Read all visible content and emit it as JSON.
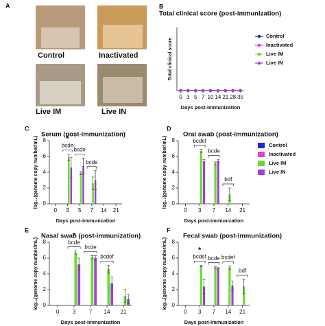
{
  "panel_a": {
    "letter": "A",
    "photos": [
      {
        "label": "Control"
      },
      {
        "label": "Inactivated"
      },
      {
        "label": "Live IM"
      },
      {
        "label": "Live IN"
      }
    ]
  },
  "chart_data": [
    {
      "type": "line",
      "panel": "B",
      "title": "Total clinical score (post-immunization)",
      "x_label": "Days post-immunization",
      "y_label": "Total clinical score",
      "categories": [
        "0",
        "3",
        "5",
        "7",
        "10",
        "14",
        "21",
        "28",
        "35"
      ],
      "ylim": [
        0,
        1
      ],
      "legend": "upper right",
      "series": [
        {
          "name": "Control",
          "color": "#2323d8",
          "values": [
            0,
            0,
            0,
            0,
            0,
            0,
            0,
            0,
            0
          ]
        },
        {
          "name": "Inactivated",
          "color": "#e43fd0",
          "values": [
            0,
            0,
            0,
            0,
            0,
            0,
            0,
            0,
            0
          ]
        },
        {
          "name": "Live IM",
          "color": "#66dd2e",
          "values": [
            0,
            0,
            0,
            0,
            0,
            0,
            0,
            0,
            0
          ]
        },
        {
          "name": "Live IN",
          "color": "#a040d8",
          "values": [
            0,
            0,
            0,
            0,
            0,
            0,
            0,
            0,
            0
          ]
        }
      ]
    },
    {
      "type": "bar",
      "panel": "C",
      "title": "Serum (post-immunization)",
      "x_label": "Days post-immunization",
      "y_label": "log₁₀(genome copy number/mL)",
      "categories": [
        "0",
        "3",
        "5",
        "7",
        "14",
        "21"
      ],
      "ylim": [
        0,
        8
      ],
      "yticks": [
        0,
        2,
        4,
        6,
        8
      ],
      "series": [
        {
          "name": "Control",
          "color": "#2323d8",
          "values": [
            0,
            0,
            0,
            0,
            0,
            0
          ],
          "errors": [
            0,
            0,
            0,
            0,
            0,
            0
          ]
        },
        {
          "name": "Inactivated",
          "color": "#e43fd0",
          "values": [
            0,
            0,
            0,
            0,
            0,
            0
          ],
          "errors": [
            0,
            0,
            0,
            0,
            0,
            0
          ]
        },
        {
          "name": "Live IM",
          "color": "#66dd2e",
          "values": [
            0,
            5.9,
            3.9,
            2.6,
            0,
            0
          ],
          "errors": [
            0,
            0.4,
            0.2,
            0.8,
            0,
            0
          ]
        },
        {
          "name": "Live IN",
          "color": "#a040d8",
          "values": [
            0,
            4.6,
            4.8,
            3.0,
            0,
            0
          ],
          "errors": [
            0,
            1.3,
            1.0,
            1.2,
            0,
            0
          ]
        }
      ],
      "annotations": [
        {
          "text": "bcde",
          "category": "3",
          "bracket": true
        },
        {
          "text": "*",
          "category": "3"
        },
        {
          "text": "bcde",
          "category": "5",
          "bracket": true
        },
        {
          "text": "bcde",
          "category": "7",
          "bracket": true
        }
      ]
    },
    {
      "type": "bar",
      "panel": "D",
      "title": "Oral swab (post-immunization)",
      "x_label": "Days post-immunization",
      "y_label": "log₁₀(genome copy number/mL)",
      "categories": [
        "0",
        "3",
        "7",
        "14",
        "21"
      ],
      "ylim": [
        0,
        8
      ],
      "yticks": [
        0,
        2,
        4,
        6,
        8
      ],
      "legend": "right",
      "series": [
        {
          "name": "Control",
          "color": "#2323d8",
          "values": [
            0,
            0,
            0,
            0,
            0
          ],
          "errors": [
            0,
            0,
            0,
            0,
            0
          ]
        },
        {
          "name": "Inactivated",
          "color": "#e43fd0",
          "values": [
            0,
            0,
            0,
            0,
            0
          ],
          "errors": [
            0,
            0,
            0,
            0,
            0
          ]
        },
        {
          "name": "Live IM",
          "color": "#66dd2e",
          "values": [
            0,
            6.7,
            5.1,
            1.2,
            0
          ],
          "errors": [
            0,
            0.2,
            0.2,
            0.8,
            0
          ]
        },
        {
          "name": "Live IN",
          "color": "#a040d8",
          "values": [
            0,
            5.4,
            5.4,
            0,
            0
          ],
          "errors": [
            0,
            0.2,
            0.2,
            0,
            0
          ]
        }
      ],
      "annotations": [
        {
          "text": "bcdef",
          "category": "3",
          "bracket": true
        },
        {
          "text": "bcde",
          "category": "7",
          "bracket": true
        },
        {
          "text": "bdf",
          "category": "14",
          "bracket": true
        }
      ]
    },
    {
      "type": "bar",
      "panel": "E",
      "title": "Nasal swab (post-immunization)",
      "x_label": "Days post-immunization",
      "y_label": "log₁₀(genome copy number/mL)",
      "categories": [
        "0",
        "3",
        "7",
        "14",
        "21"
      ],
      "ylim": [
        0,
        8
      ],
      "yticks": [
        0,
        2,
        4,
        6,
        8
      ],
      "series": [
        {
          "name": "Control",
          "color": "#2323d8",
          "values": [
            0,
            0,
            0,
            0,
            0
          ],
          "errors": [
            0,
            0,
            0,
            0,
            0
          ]
        },
        {
          "name": "Inactivated",
          "color": "#e43fd0",
          "values": [
            0,
            0,
            0,
            0,
            0
          ],
          "errors": [
            0,
            0,
            0,
            0,
            0
          ]
        },
        {
          "name": "Live IM",
          "color": "#66dd2e",
          "values": [
            0,
            6.7,
            6.1,
            4.6,
            1.2
          ],
          "errors": [
            0,
            0.2,
            0.2,
            0.5,
            0.8
          ]
        },
        {
          "name": "Live IN",
          "color": "#a040d8",
          "values": [
            0,
            5.2,
            6.0,
            2.8,
            0.8
          ],
          "errors": [
            0,
            0.8,
            0.3,
            0.8,
            0.6
          ]
        }
      ],
      "annotations": [
        {
          "text": "bcde",
          "category": "3",
          "bracket": true
        },
        {
          "text": "*",
          "category": "3"
        },
        {
          "text": "bcde",
          "category": "7",
          "bracket": true
        },
        {
          "text": "bcdef",
          "category": "14",
          "bracket": true
        }
      ]
    },
    {
      "type": "bar",
      "panel": "F",
      "title": "Fecal swab (post-immunization)",
      "x_label": "Days post-immunization",
      "y_label": "log₁₀(genome copy number/mL)",
      "categories": [
        "0",
        "3",
        "7",
        "14",
        "21"
      ],
      "ylim": [
        0,
        8
      ],
      "yticks": [
        0,
        2,
        4,
        6,
        8
      ],
      "series": [
        {
          "name": "Control",
          "color": "#2323d8",
          "values": [
            0,
            0,
            0,
            0,
            0
          ],
          "errors": [
            0,
            0,
            0,
            0,
            0
          ]
        },
        {
          "name": "Inactivated",
          "color": "#e43fd0",
          "values": [
            0,
            0,
            0,
            0,
            0
          ],
          "errors": [
            0,
            0,
            0,
            0,
            0
          ]
        },
        {
          "name": "Live IM",
          "color": "#66dd2e",
          "values": [
            0,
            5.0,
            4.8,
            4.8,
            2.4
          ],
          "errors": [
            0,
            0.1,
            0.1,
            0.2,
            0.9
          ]
        },
        {
          "name": "Live IN",
          "color": "#a040d8",
          "values": [
            0,
            2.4,
            4.7,
            2.5,
            0
          ],
          "errors": [
            0,
            0.9,
            0.1,
            0.6,
            0
          ]
        }
      ],
      "annotations": [
        {
          "text": "bcdef",
          "category": "3",
          "bracket": true
        },
        {
          "text": "*",
          "category": "3"
        },
        {
          "text": "bcde",
          "category": "7",
          "bracket": true
        },
        {
          "text": "bcdef",
          "category": "14",
          "bracket": true
        },
        {
          "text": "bdf",
          "category": "21",
          "bracket": true
        }
      ]
    }
  ]
}
